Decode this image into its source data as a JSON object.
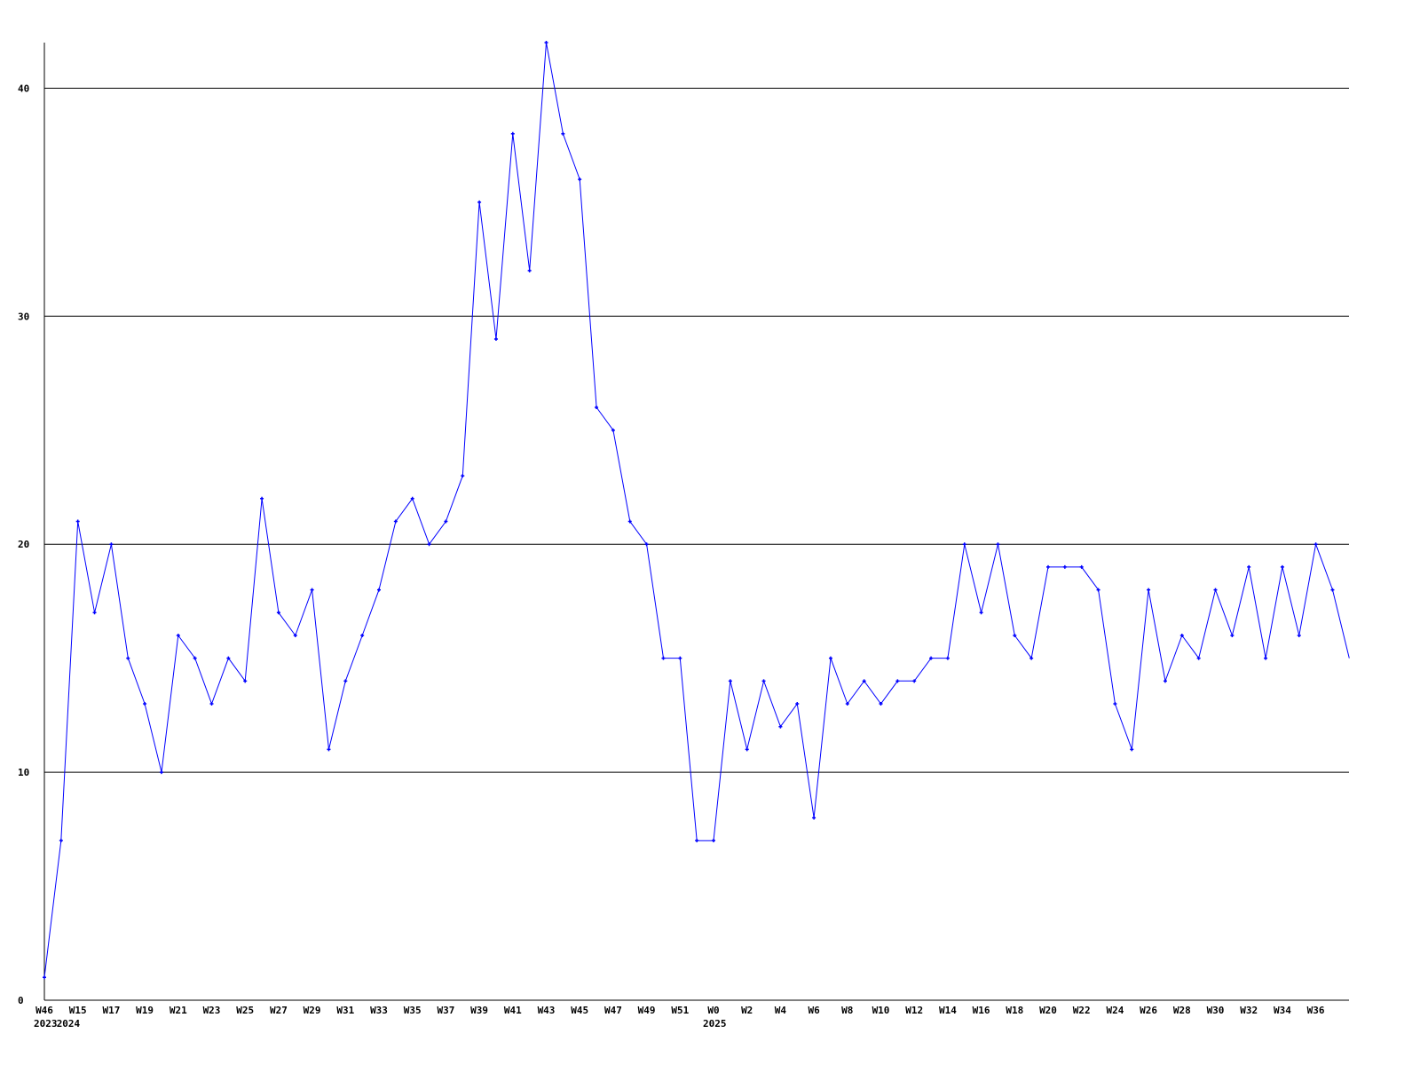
{
  "chart_data": {
    "type": "line",
    "title": "",
    "xlabel": "",
    "ylabel": "",
    "ylim": [
      0,
      42
    ],
    "yticks": [
      "0",
      "10",
      "20",
      "30",
      "40"
    ],
    "grid": "horizontal",
    "line_color": "#0000ff",
    "grid_color": "#000000",
    "x": [
      "W46 2023",
      "W14 2024",
      "W15",
      "W16",
      "W17",
      "W18",
      "W19",
      "W20",
      "W21",
      "W22",
      "W23",
      "W24",
      "W25",
      "W26",
      "W27",
      "W28",
      "W29",
      "W30",
      "W31",
      "W32",
      "W33",
      "W34",
      "W35",
      "W36",
      "W37",
      "W38",
      "W39",
      "W40",
      "W41",
      "W42",
      "W43",
      "W44",
      "W45",
      "W46",
      "W47",
      "W48",
      "W49",
      "W50",
      "W51",
      "W52",
      "W0 2025",
      "W1",
      "W2",
      "W3",
      "W4",
      "W5",
      "W6",
      "W7",
      "W8",
      "W9",
      "W10",
      "W11",
      "W12",
      "W13",
      "W14",
      "W15",
      "W16",
      "W17",
      "W18",
      "W19",
      "W20",
      "W21",
      "W22",
      "W23",
      "W24",
      "W25",
      "W26",
      "W27",
      "W28",
      "W29",
      "W30",
      "W31",
      "W32",
      "W33",
      "W34",
      "W35",
      "W36",
      "W37",
      "W38"
    ],
    "values": [
      1,
      7,
      21,
      17,
      20,
      15,
      13,
      10,
      16,
      15,
      13,
      15,
      14,
      22,
      17,
      16,
      18,
      11,
      14,
      16,
      18,
      21,
      22,
      20,
      21,
      23,
      35,
      29,
      38,
      32,
      42,
      38,
      36,
      26,
      25,
      21,
      20,
      15,
      15,
      7,
      7,
      14,
      11,
      14,
      12,
      13,
      8,
      15,
      13,
      14,
      13,
      14,
      14,
      15,
      15,
      20,
      17,
      20,
      16,
      15,
      19,
      19,
      19,
      18,
      13,
      11,
      18,
      14,
      16,
      15,
      18,
      16,
      19,
      15,
      19,
      16,
      20,
      18,
      15
    ],
    "xtick_labels": [
      {
        "label": "W46",
        "year": "2023",
        "index": 0
      },
      {
        "label": "W15",
        "year": "2024",
        "index": 2
      },
      {
        "label": "W17",
        "index": 4
      },
      {
        "label": "W19",
        "index": 6
      },
      {
        "label": "W21",
        "index": 8
      },
      {
        "label": "W23",
        "index": 10
      },
      {
        "label": "W25",
        "index": 12
      },
      {
        "label": "W27",
        "index": 14
      },
      {
        "label": "W29",
        "index": 16
      },
      {
        "label": "W31",
        "index": 18
      },
      {
        "label": "W33",
        "index": 20
      },
      {
        "label": "W35",
        "index": 22
      },
      {
        "label": "W37",
        "index": 24
      },
      {
        "label": "W39",
        "index": 26
      },
      {
        "label": "W41",
        "index": 28
      },
      {
        "label": "W43",
        "index": 30
      },
      {
        "label": "W45",
        "index": 32
      },
      {
        "label": "W47",
        "index": 34
      },
      {
        "label": "W49",
        "index": 36
      },
      {
        "label": "W51",
        "index": 38
      },
      {
        "label": "W0",
        "year": "2025",
        "index": 40
      },
      {
        "label": "W2",
        "index": 42
      },
      {
        "label": "W4",
        "index": 44
      },
      {
        "label": "W6",
        "index": 46
      },
      {
        "label": "W8",
        "index": 48
      },
      {
        "label": "W10",
        "index": 50
      },
      {
        "label": "W12",
        "index": 52
      },
      {
        "label": "W14",
        "index": 54
      },
      {
        "label": "W16",
        "index": 56
      },
      {
        "label": "W18",
        "index": 58
      },
      {
        "label": "W20",
        "index": 60
      },
      {
        "label": "W22",
        "index": 62
      },
      {
        "label": "W24",
        "index": 64
      },
      {
        "label": "W26",
        "index": 66
      },
      {
        "label": "W28",
        "index": 68
      },
      {
        "label": "W30",
        "index": 70
      },
      {
        "label": "W32",
        "index": 72
      },
      {
        "label": "W34",
        "index": 74
      },
      {
        "label": "W36",
        "index": 76
      }
    ]
  }
}
